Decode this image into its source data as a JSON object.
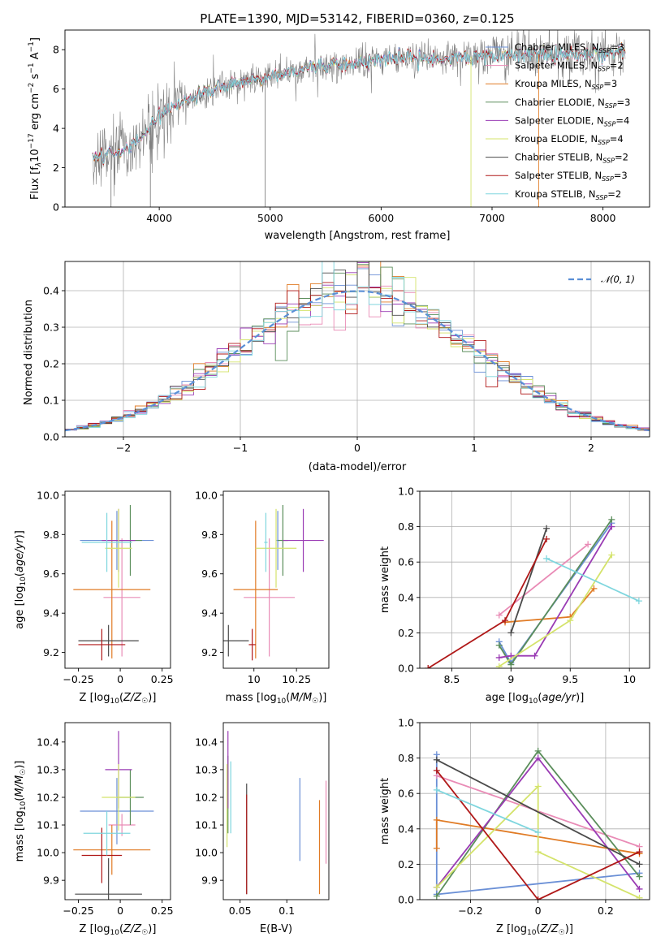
{
  "title": "PLATE=1390, MJD=53142, FIBERID=0360, z=0.125",
  "colors": {
    "Chabrier MILES": "#6a8fd6",
    "Salpeter MILES": "#e98bb6",
    "Kroupa MILES": "#e07b25",
    "Chabrier ELODIE": "#5b8e5b",
    "Salpeter ELODIE": "#9a3bb4",
    "Kroupa ELODIE": "#d4e36b",
    "Chabrier STELIB": "#4a4a4a",
    "Salpeter STELIB": "#b01818",
    "Kroupa STELIB": "#7fd6de",
    "data": "#808080",
    "normal": "#5a8fd6"
  },
  "chart_data": [
    {
      "id": "spectrum",
      "type": "line",
      "xlabel": "wavelength [Angstrom, rest frame]",
      "ylabel": "Flux [f_λ10^-17 erg cm^-2 s^-1 A^-1]",
      "xlim": [
        3150,
        8420
      ],
      "ylim": [
        0,
        9
      ],
      "xticks": [
        4000,
        5000,
        6000,
        7000,
        8000
      ],
      "yticks": [
        0,
        2,
        4,
        6,
        8
      ],
      "legend_position": "right",
      "legend": [
        {
          "name": "Chabrier MILES",
          "base": "Chabrier MILES, N",
          "sub": "SSP",
          "tail": "=3"
        },
        {
          "name": "Salpeter MILES",
          "base": "Salpeter MILES, N",
          "sub": "SSP",
          "tail": "=2"
        },
        {
          "name": "Kroupa MILES",
          "base": "Kroupa MILES, N",
          "sub": "SSP",
          "tail": "=3"
        },
        {
          "name": "Chabrier ELODIE",
          "base": "Chabrier ELODIE, N",
          "sub": "SSP",
          "tail": "=3"
        },
        {
          "name": "Salpeter ELODIE",
          "base": "Salpeter ELODIE, N",
          "sub": "SSP",
          "tail": "=4"
        },
        {
          "name": "Kroupa ELODIE",
          "base": "Kroupa ELODIE, N",
          "sub": "SSP",
          "tail": "=4"
        },
        {
          "name": "Chabrier STELIB",
          "base": "Chabrier STELIB, N",
          "sub": "SSP",
          "tail": "=2"
        },
        {
          "name": "Salpeter STELIB",
          "base": "Salpeter STELIB, N",
          "sub": "SSP",
          "tail": "=3"
        },
        {
          "name": "Kroupa STELIB",
          "base": "Kroupa STELIB, N",
          "sub": "SSP",
          "tail": "=2"
        }
      ],
      "continuum": {
        "wavelength": [
          3400,
          3600,
          3700,
          3800,
          3900,
          4000,
          4100,
          4200,
          4300,
          4500,
          4700,
          4900,
          5100,
          5300,
          5500,
          5800,
          6000,
          6300,
          6600,
          7000,
          7400,
          7800,
          8200
        ],
        "flux": [
          2.6,
          2.7,
          3.0,
          3.4,
          4.0,
          4.6,
          5.0,
          5.4,
          5.6,
          6.0,
          6.3,
          6.5,
          6.8,
          7.0,
          7.2,
          7.35,
          7.5,
          7.6,
          7.6,
          7.7,
          7.75,
          7.8,
          7.9
        ]
      }
    },
    {
      "id": "residuals",
      "type": "bar",
      "xlabel": "(data-model)/error",
      "ylabel": "Normed distribution",
      "xlim": [
        -2.5,
        2.5
      ],
      "ylim": [
        0,
        0.48
      ],
      "xticks": [
        -2,
        -1,
        0,
        1,
        2
      ],
      "yticks": [
        0.0,
        0.1,
        0.2,
        0.3,
        0.4
      ],
      "grid": true,
      "legend_position": "top-right",
      "legend": "𝒩(0, 1)",
      "bins": {
        "start": -2.5,
        "width": 0.1,
        "count": 50
      }
    },
    {
      "id": "age-vs-Z",
      "type": "scatter",
      "xlabel": "Z [log₁₀(Z/Z☉)]",
      "ylabel": "age  [log₁₀(age/yr)]",
      "xlim": [
        -0.33,
        0.3
      ],
      "ylim": [
        9.12,
        10.02
      ],
      "xticks": [
        -0.25,
        0.0,
        0.25
      ],
      "yticks": [
        9.2,
        9.4,
        9.6,
        9.8,
        10.0
      ],
      "points": [
        {
          "model": "Chabrier MILES",
          "x": -0.02,
          "xerr": 0.22,
          "y": 9.77,
          "yerr": 0.15
        },
        {
          "model": "Salpeter MILES",
          "x": 0.01,
          "xerr": 0.11,
          "y": 9.48,
          "yerr": 0.3
        },
        {
          "model": "Kroupa MILES",
          "x": -0.05,
          "xerr": 0.23,
          "y": 9.52,
          "yerr": 0.35
        },
        {
          "model": "Chabrier ELODIE",
          "x": 0.06,
          "xerr": 0.07,
          "y": 9.77,
          "yerr": 0.18
        },
        {
          "model": "Salpeter ELODIE",
          "x": -0.01,
          "xerr": 0.1,
          "y": 9.77,
          "yerr": 0.16
        },
        {
          "model": "Kroupa ELODIE",
          "x": -0.01,
          "xerr": 0.08,
          "y": 9.73,
          "yerr": 0.2
        },
        {
          "model": "Chabrier STELIB",
          "x": -0.07,
          "xerr": 0.18,
          "y": 9.26,
          "yerr": 0.08
        },
        {
          "model": "Salpeter STELIB",
          "x": -0.11,
          "xerr": 0.14,
          "y": 9.24,
          "yerr": 0.08
        },
        {
          "model": "Kroupa STELIB",
          "x": -0.08,
          "xerr": 0.15,
          "y": 9.76,
          "yerr": 0.15
        }
      ]
    },
    {
      "id": "age-vs-mass",
      "type": "scatter",
      "xlabel": "mass [log₁₀(M/M☉)]",
      "xlim": [
        9.82,
        10.44
      ],
      "ylim": [
        9.12,
        10.02
      ],
      "xticks": [
        10.0,
        10.25
      ],
      "yticks": [
        9.2,
        9.4,
        9.6,
        9.8,
        10.0
      ],
      "points": [
        {
          "model": "Chabrier MILES",
          "x": 10.14,
          "xerr": 0.01,
          "y": 9.77,
          "yerr": 0.15
        },
        {
          "model": "Salpeter MILES",
          "x": 10.09,
          "xerr": 0.15,
          "y": 9.48,
          "yerr": 0.3
        },
        {
          "model": "Kroupa MILES",
          "x": 10.01,
          "xerr": 0.13,
          "y": 9.52,
          "yerr": 0.35
        },
        {
          "model": "Chabrier ELODIE",
          "x": 10.17,
          "xerr": 0.03,
          "y": 9.77,
          "yerr": 0.18
        },
        {
          "model": "Salpeter ELODIE",
          "x": 10.29,
          "xerr": 0.12,
          "y": 9.77,
          "yerr": 0.16
        },
        {
          "model": "Kroupa ELODIE",
          "x": 10.13,
          "xerr": 0.12,
          "y": 9.73,
          "yerr": 0.2
        },
        {
          "model": "Chabrier STELIB",
          "x": 9.85,
          "xerr": 0.12,
          "y": 9.26,
          "yerr": 0.08
        },
        {
          "model": "Salpeter STELIB",
          "x": 9.99,
          "xerr": 0.02,
          "y": 9.24,
          "yerr": 0.08
        },
        {
          "model": "Kroupa STELIB",
          "x": 10.07,
          "xerr": 0.01,
          "y": 9.76,
          "yerr": 0.15
        }
      ]
    },
    {
      "id": "weight-vs-age",
      "type": "line",
      "xlabel": "age  [log₁₀(age/yr)]",
      "ylabel": "mass weight",
      "xlim": [
        8.23,
        10.17
      ],
      "ylim": [
        0,
        1
      ],
      "xticks": [
        8.5,
        9.0,
        9.5,
        10.0
      ],
      "yticks": [
        0.0,
        0.2,
        0.4,
        0.6,
        0.8,
        1.0
      ],
      "grid": true,
      "series": [
        {
          "model": "Chabrier MILES",
          "x": [
            8.9,
            9.0,
            9.85
          ],
          "y": [
            0.15,
            0.03,
            0.82
          ]
        },
        {
          "model": "Salpeter MILES",
          "x": [
            8.9,
            9.65
          ],
          "y": [
            0.3,
            0.7
          ]
        },
        {
          "model": "Kroupa MILES",
          "x": [
            8.95,
            9.5,
            9.7
          ],
          "y": [
            0.26,
            0.29,
            0.45
          ]
        },
        {
          "model": "Chabrier ELODIE",
          "x": [
            8.9,
            9.0,
            9.85
          ],
          "y": [
            0.13,
            0.02,
            0.84
          ]
        },
        {
          "model": "Salpeter ELODIE",
          "x": [
            8.9,
            9.0,
            9.2,
            9.85
          ],
          "y": [
            0.06,
            0.07,
            0.07,
            0.8
          ]
        },
        {
          "model": "Kroupa ELODIE",
          "x": [
            8.9,
            9.5,
            9.85
          ],
          "y": [
            0.01,
            0.27,
            0.64
          ]
        },
        {
          "model": "Chabrier STELIB",
          "x": [
            9.0,
            9.3
          ],
          "y": [
            0.2,
            0.79
          ]
        },
        {
          "model": "Salpeter STELIB",
          "x": [
            8.3,
            8.95,
            9.3
          ],
          "y": [
            0.0,
            0.27,
            0.73
          ]
        },
        {
          "model": "Kroupa STELIB",
          "x": [
            9.3,
            10.08
          ],
          "y": [
            0.62,
            0.38
          ]
        }
      ]
    },
    {
      "id": "mass-vs-Z",
      "type": "scatter",
      "xlabel": "Z [log₁₀(Z/Z☉)]",
      "ylabel": "mass [log₁₀(M/M☉)]",
      "xlim": [
        -0.33,
        0.3
      ],
      "ylim": [
        9.83,
        10.47
      ],
      "xticks": [
        -0.25,
        0.0,
        0.25
      ],
      "yticks": [
        9.9,
        10.0,
        10.1,
        10.2,
        10.3,
        10.4
      ],
      "points": [
        {
          "model": "Chabrier MILES",
          "x": -0.02,
          "xerr": 0.22,
          "y": 10.15,
          "yerr": 0.12
        },
        {
          "model": "Salpeter MILES",
          "x": 0.01,
          "xerr": 0.08,
          "y": 10.1,
          "yerr": 0.04
        },
        {
          "model": "Kroupa MILES",
          "x": -0.05,
          "xerr": 0.23,
          "y": 10.01,
          "yerr": 0.09
        },
        {
          "model": "Chabrier ELODIE",
          "x": 0.06,
          "xerr": 0.08,
          "y": 10.2,
          "yerr": 0.1
        },
        {
          "model": "Salpeter ELODIE",
          "x": -0.01,
          "xerr": 0.08,
          "y": 10.3,
          "yerr": 0.14
        },
        {
          "model": "Kroupa ELODIE",
          "x": -0.01,
          "xerr": 0.1,
          "y": 10.2,
          "yerr": 0.12
        },
        {
          "model": "Chabrier STELIB",
          "x": -0.07,
          "xerr": 0.2,
          "y": 9.85,
          "yerr": 0.13
        },
        {
          "model": "Salpeter STELIB",
          "x": -0.11,
          "xerr": 0.12,
          "y": 9.99,
          "yerr": 0.1
        },
        {
          "model": "Kroupa STELIB",
          "x": -0.08,
          "xerr": 0.14,
          "y": 10.07,
          "yerr": 0.08
        }
      ]
    },
    {
      "id": "mass-vs-ebv",
      "type": "scatter",
      "xlabel": "E(B-V)",
      "xlim": [
        0.032,
        0.145
      ],
      "ylim": [
        9.83,
        10.47
      ],
      "xticks": [
        0.05,
        0.1
      ],
      "yticks": [
        9.9,
        10.0,
        10.1,
        10.2,
        10.3,
        10.4
      ],
      "points": [
        {
          "model": "Chabrier MILES",
          "x": 0.114,
          "y": 10.12,
          "yerr": 0.15
        },
        {
          "model": "Salpeter MILES",
          "x": 0.142,
          "y": 10.11,
          "yerr": 0.15
        },
        {
          "model": "Kroupa MILES",
          "x": 0.135,
          "y": 10.02,
          "yerr": 0.17
        },
        {
          "model": "Chabrier ELODIE",
          "x": 0.037,
          "y": 10.21,
          "yerr": 0.14
        },
        {
          "model": "Salpeter ELODIE",
          "x": 0.037,
          "y": 10.3,
          "yerr": 0.14
        },
        {
          "model": "Kroupa ELODIE",
          "x": 0.036,
          "y": 10.17,
          "yerr": 0.15
        },
        {
          "model": "Chabrier STELIB",
          "x": 0.057,
          "y": 10.05,
          "yerr": 0.2
        },
        {
          "model": "Salpeter STELIB",
          "x": 0.057,
          "y": 10.03,
          "yerr": 0.18
        },
        {
          "model": "Kroupa STELIB",
          "x": 0.04,
          "y": 10.2,
          "yerr": 0.13
        }
      ]
    },
    {
      "id": "weight-vs-Z",
      "type": "line",
      "xlabel": "Z [log₁₀(Z/Z☉)]",
      "ylabel": "mass weight",
      "xlim": [
        -0.35,
        0.33
      ],
      "ylim": [
        0,
        1
      ],
      "xticks": [
        -0.2,
        0.0,
        0.2
      ],
      "yticks": [
        0.0,
        0.2,
        0.4,
        0.6,
        0.8,
        1.0
      ],
      "grid": true,
      "series": [
        {
          "model": "Chabrier MILES",
          "x": [
            -0.3,
            -0.3,
            0.3
          ],
          "y": [
            0.82,
            0.03,
            0.15
          ]
        },
        {
          "model": "Salpeter MILES",
          "x": [
            -0.3,
            0.3
          ],
          "y": [
            0.7,
            0.3
          ]
        },
        {
          "model": "Kroupa MILES",
          "x": [
            -0.3,
            -0.3,
            0.3
          ],
          "y": [
            0.29,
            0.45,
            0.26
          ]
        },
        {
          "model": "Chabrier ELODIE",
          "x": [
            -0.3,
            0.0,
            0.3
          ],
          "y": [
            0.02,
            0.84,
            0.13
          ]
        },
        {
          "model": "Salpeter ELODIE",
          "x": [
            -0.3,
            0.0,
            0.3
          ],
          "y": [
            0.07,
            0.8,
            0.06
          ]
        },
        {
          "model": "Kroupa ELODIE",
          "x": [
            -0.3,
            0.0,
            0.0,
            0.3
          ],
          "y": [
            0.07,
            0.64,
            0.27,
            0.01
          ]
        },
        {
          "model": "Chabrier STELIB",
          "x": [
            -0.3,
            0.3
          ],
          "y": [
            0.79,
            0.2
          ]
        },
        {
          "model": "Salpeter STELIB",
          "x": [
            -0.3,
            0.0,
            0.3
          ],
          "y": [
            0.73,
            0.0,
            0.27
          ]
        },
        {
          "model": "Kroupa STELIB",
          "x": [
            -0.3,
            0.0
          ],
          "y": [
            0.62,
            0.38
          ]
        }
      ]
    }
  ]
}
